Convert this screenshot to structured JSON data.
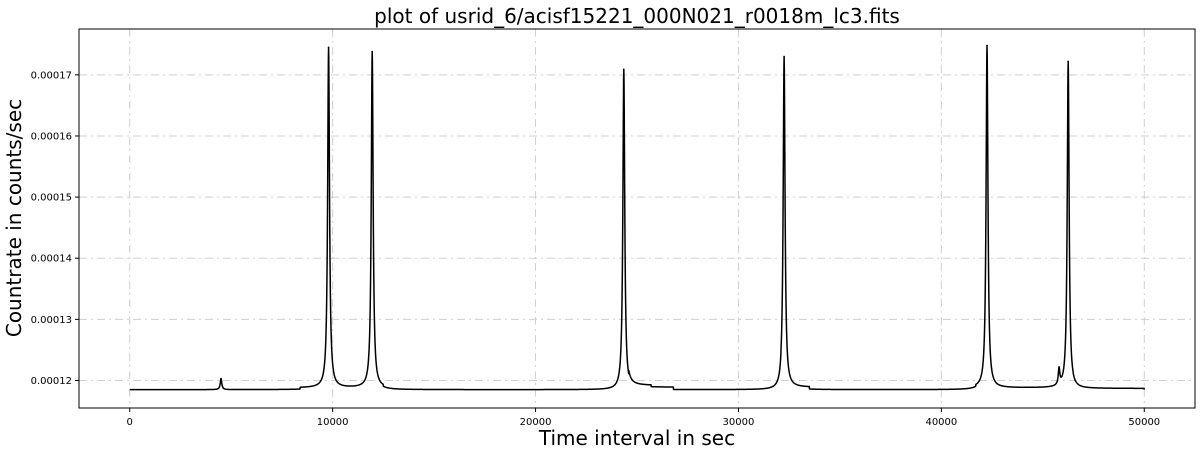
{
  "chart_data": {
    "type": "line",
    "title": "plot of usrid_6/acisf15221_000N021_r0018m_lc3.fits",
    "xlabel": "Time interval in sec",
    "ylabel": "Countrate in counts/sec",
    "xlim": [
      -2500,
      52500
    ],
    "ylim": [
      0.0001155,
      0.0001775
    ],
    "xticks": [
      0,
      10000,
      20000,
      30000,
      40000,
      50000
    ],
    "xtick_labels": [
      "0",
      "10000",
      "20000",
      "30000",
      "40000",
      "50000"
    ],
    "yticks": [
      0.00012,
      0.00013,
      0.00014,
      0.00015,
      0.00016,
      0.00017
    ],
    "ytick_labels": [
      "0.00012",
      "0.00013",
      "0.00014",
      "0.00015",
      "0.00016",
      "0.00017"
    ],
    "grid": true,
    "line_color": "#000000",
    "baseline": 0.0001185,
    "x_range": [
      0,
      50000
    ],
    "steps": [
      {
        "start": 8400,
        "end": 12500,
        "level": 0.0001188
      },
      {
        "start": 24600,
        "end": 25700,
        "level": 0.0001192
      },
      {
        "start": 25700,
        "end": 26800,
        "level": 0.0001189
      },
      {
        "start": 32100,
        "end": 33500,
        "level": 0.0001189
      },
      {
        "start": 41700,
        "end": 46500,
        "level": 0.0001188
      },
      {
        "start": 46500,
        "end": 50000,
        "level": 0.0001187
      }
    ],
    "peaks": [
      {
        "x": 4500,
        "peak": 0.0001203
      },
      {
        "x": 9800,
        "peak": 0.0001745
      },
      {
        "x": 11950,
        "peak": 0.0001738
      },
      {
        "x": 24350,
        "peak": 0.0001709
      },
      {
        "x": 32250,
        "peak": 0.000173
      },
      {
        "x": 42250,
        "peak": 0.0001748
      },
      {
        "x": 45800,
        "peak": 0.0001215
      },
      {
        "x": 46250,
        "peak": 0.0001722
      }
    ]
  }
}
